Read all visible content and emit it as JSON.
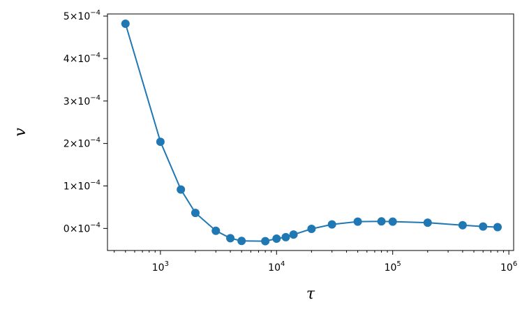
{
  "chart_data": {
    "type": "line",
    "title": "",
    "xlabel": "τ",
    "ylabel": "v",
    "x_scale": "log",
    "xlim": [
      350,
      1100000
    ],
    "ylim": [
      -5.2e-05,
      0.000505
    ],
    "grid": false,
    "legend": "none",
    "color": "#1f77b4",
    "x_ticks": [
      {
        "value": 1000,
        "base": "10",
        "exp": "3"
      },
      {
        "value": 10000,
        "base": "10",
        "exp": "4"
      },
      {
        "value": 100000,
        "base": "10",
        "exp": "5"
      },
      {
        "value": 1000000,
        "base": "10",
        "exp": "6"
      }
    ],
    "y_ticks": [
      {
        "value": 0.0,
        "mant": "0",
        "times": "×",
        "base": "10",
        "exp": "−4"
      },
      {
        "value": 0.0001,
        "mant": "1",
        "times": "×",
        "base": "10",
        "exp": "−4"
      },
      {
        "value": 0.0002,
        "mant": "2",
        "times": "×",
        "base": "10",
        "exp": "−4"
      },
      {
        "value": 0.0003,
        "mant": "3",
        "times": "×",
        "base": "10",
        "exp": "−4"
      },
      {
        "value": 0.0004,
        "mant": "4",
        "times": "×",
        "base": "10",
        "exp": "−4"
      },
      {
        "value": 0.0005,
        "mant": "5",
        "times": "×",
        "base": "10",
        "exp": "−4"
      }
    ],
    "series": [
      {
        "x": [
          500,
          1000,
          1500,
          2000,
          3000,
          4000,
          5000,
          8000,
          10000,
          12000,
          14000,
          20000,
          30000,
          50000,
          80000,
          100000,
          200000,
          400000,
          600000,
          800000
        ],
        "y": [
          0.000482,
          0.000204,
          9.15e-05,
          3.65e-05,
          -5.5e-06,
          -2.3e-05,
          -2.95e-05,
          -3e-05,
          -2.4e-05,
          -2.05e-05,
          -1.45e-05,
          -1e-06,
          9.5e-06,
          1.6e-05,
          1.65e-05,
          1.6e-05,
          1.35e-05,
          7.5e-06,
          4.5e-06,
          3e-06
        ]
      }
    ]
  }
}
